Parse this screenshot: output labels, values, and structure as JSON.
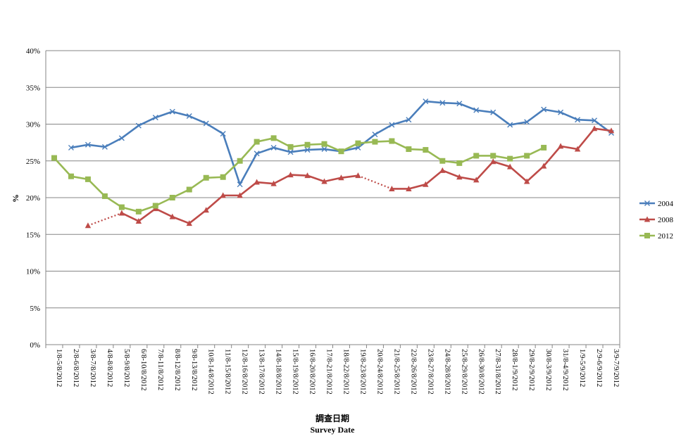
{
  "chart_data": {
    "type": "line",
    "ylabel": "%",
    "xlabel_zh": "調查日期",
    "xlabel_en": "Survey Date",
    "ylim": [
      0,
      40
    ],
    "y_ticks": [
      "0%",
      "5%",
      "10%",
      "15%",
      "20%",
      "25%",
      "30%",
      "35%",
      "40%"
    ],
    "grid": "horizontal",
    "legend_position": "right",
    "categories": [
      "1/8-5/8/2012",
      "2/8-6/8/2012",
      "3/8-7/8/2012",
      "4/8-8/8/2012",
      "5/8-9/8/2012",
      "6/8-10/8/2012",
      "7/8-11/8/2012",
      "8/8-12/8/2012",
      "9/8-13/8/2012",
      "10/8-14/8/2012",
      "11/8-15/8/2012",
      "12/8-16/8/2012",
      "13/8-17/8/2012",
      "14/8-18/8/2012",
      "15/8-19/8/2012",
      "16/8-20/8/2012",
      "17/8-21/8/2012",
      "18/8-22/8/2012",
      "19/8-23/8/2012",
      "20/8-24/8/2012",
      "21/8-25/8/2012",
      "22/8-26/8/2012",
      "23/8-27/8/2012",
      "24/8-28/8/2012",
      "25/8-29/8/2012",
      "26/8-30/8/2012",
      "27/8-31/8/2012",
      "28/8-1/9/2012",
      "29/8-2/9/2012",
      "30/8-3/9/2012",
      "31/8-4/9/2012",
      "1/9-5/9/2012",
      "2/9-6/9/2012",
      "3/9-7/9/2012"
    ],
    "series": [
      {
        "name": "2004",
        "color": "#4a7ebb",
        "marker": "x",
        "values": [
          null,
          26.8,
          27.2,
          26.9,
          28.1,
          29.8,
          30.9,
          31.7,
          31.1,
          30.1,
          28.7,
          21.8,
          26.0,
          26.8,
          26.2,
          26.5,
          26.6,
          26.3,
          26.8,
          28.6,
          29.9,
          30.6,
          33.1,
          32.9,
          32.8,
          31.9,
          31.6,
          29.9,
          30.3,
          32.0,
          31.6,
          30.6,
          30.5,
          28.8
        ],
        "dotted_gaps": []
      },
      {
        "name": "2008",
        "color": "#be4b48",
        "marker": "triangle",
        "values": [
          null,
          null,
          16.2,
          null,
          17.9,
          16.8,
          18.5,
          17.4,
          16.5,
          18.3,
          20.3,
          20.3,
          22.1,
          21.9,
          23.1,
          23.0,
          22.2,
          22.7,
          23.0,
          null,
          21.2,
          21.2,
          21.8,
          23.7,
          22.8,
          22.4,
          24.9,
          24.2,
          22.2,
          24.3,
          27.0,
          26.6,
          29.4,
          29.1
        ],
        "dotted_gaps": [
          [
            2,
            4
          ],
          [
            18,
            20
          ]
        ]
      },
      {
        "name": "2012",
        "color": "#98b954",
        "marker": "square",
        "values": [
          25.4,
          22.9,
          22.5,
          20.2,
          18.7,
          18.1,
          18.9,
          20.0,
          21.1,
          22.7,
          22.8,
          25.0,
          27.6,
          28.1,
          26.9,
          27.2,
          27.3,
          26.3,
          27.4,
          27.6,
          27.7,
          26.6,
          26.5,
          25.0,
          24.7,
          25.7,
          25.7,
          25.3,
          25.7,
          26.8,
          null,
          null,
          null,
          null
        ],
        "dotted_gaps": []
      }
    ]
  }
}
